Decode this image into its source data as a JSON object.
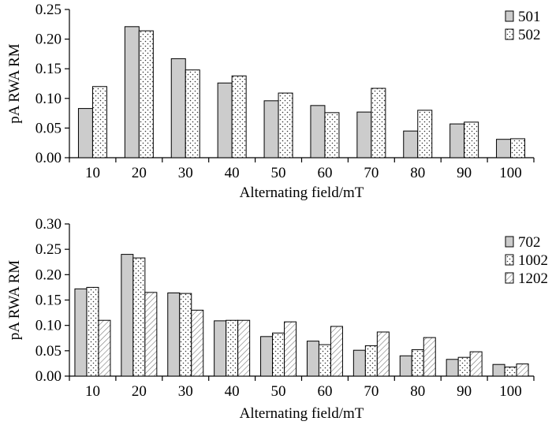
{
  "chart_data": [
    {
      "type": "bar",
      "xlabel": "Alternating field/mT",
      "ylabel": "pA RWA RM",
      "categories": [
        "10",
        "20",
        "30",
        "40",
        "50",
        "60",
        "70",
        "80",
        "90",
        "100"
      ],
      "ylim": [
        0,
        0.25
      ],
      "yticks": [
        "0.00",
        "0.05",
        "0.10",
        "0.15",
        "0.20",
        "0.25"
      ],
      "legend_position": "top-right",
      "series": [
        {
          "name": "501",
          "pattern": "solid-gray",
          "values": [
            0.083,
            0.221,
            0.167,
            0.126,
            0.096,
            0.088,
            0.077,
            0.045,
            0.057,
            0.031
          ]
        },
        {
          "name": "502",
          "pattern": "dots",
          "values": [
            0.12,
            0.214,
            0.148,
            0.138,
            0.109,
            0.076,
            0.117,
            0.08,
            0.06,
            0.032
          ]
        }
      ]
    },
    {
      "type": "bar",
      "xlabel": "Alternating field/mT",
      "ylabel": "pA RWA RM",
      "categories": [
        "10",
        "20",
        "30",
        "40",
        "50",
        "60",
        "70",
        "80",
        "90",
        "100"
      ],
      "ylim": [
        0,
        0.3
      ],
      "yticks": [
        "0.00",
        "0.05",
        "0.10",
        "0.15",
        "0.20",
        "0.25",
        "0.30"
      ],
      "legend_position": "top-right",
      "series": [
        {
          "name": "702",
          "pattern": "solid-gray",
          "values": [
            0.172,
            0.24,
            0.164,
            0.109,
            0.078,
            0.069,
            0.051,
            0.04,
            0.033,
            0.023
          ]
        },
        {
          "name": "1002",
          "pattern": "dots",
          "values": [
            0.175,
            0.233,
            0.163,
            0.11,
            0.085,
            0.062,
            0.06,
            0.052,
            0.037,
            0.018
          ]
        },
        {
          "name": "1202",
          "pattern": "hatch",
          "values": [
            0.11,
            0.165,
            0.13,
            0.11,
            0.107,
            0.098,
            0.087,
            0.076,
            0.048,
            0.024
          ]
        }
      ]
    }
  ]
}
